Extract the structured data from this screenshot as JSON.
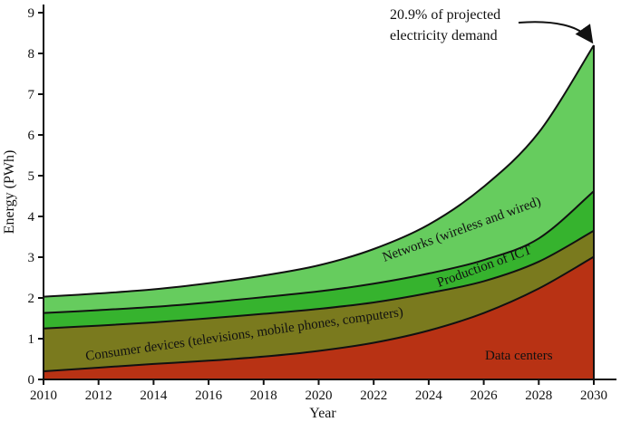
{
  "chart_data": {
    "type": "area",
    "stacked": true,
    "title": "",
    "xlabel": "Year",
    "ylabel": "Energy (PWh)",
    "xlim": [
      2010,
      2030
    ],
    "ylim": [
      0,
      9
    ],
    "x_ticks": [
      2010,
      2012,
      2014,
      2016,
      2018,
      2020,
      2022,
      2024,
      2026,
      2028,
      2030
    ],
    "y_ticks": [
      0,
      1,
      2,
      3,
      4,
      5,
      6,
      7,
      8,
      9
    ],
    "x": [
      2010,
      2012,
      2014,
      2016,
      2018,
      2020,
      2022,
      2024,
      2026,
      2028,
      2030
    ],
    "series": [
      {
        "name": "Data centers",
        "color": "#b83214",
        "values": [
          0.2,
          0.29,
          0.38,
          0.46,
          0.56,
          0.7,
          0.9,
          1.2,
          1.63,
          2.23,
          3.01
        ]
      },
      {
        "name": "Consumer devices (televisions, mobile phones, computers)",
        "color": "#7a7a1e",
        "values": [
          1.05,
          1.03,
          1.02,
          1.04,
          1.05,
          1.03,
          0.99,
          0.92,
          0.78,
          0.66,
          0.64
        ]
      },
      {
        "name": "Production of ICT",
        "color": "#36b32e",
        "values": [
          0.38,
          0.38,
          0.38,
          0.39,
          0.41,
          0.43,
          0.46,
          0.48,
          0.52,
          0.57,
          0.97
        ]
      },
      {
        "name": "Networks (wireless and wired)",
        "color": "#66cc5e",
        "values": [
          0.4,
          0.41,
          0.43,
          0.47,
          0.53,
          0.64,
          0.85,
          1.2,
          1.8,
          2.6,
          3.58
        ]
      }
    ],
    "annotation": {
      "line1": "20.9% of projected",
      "line2": "electricity demand"
    }
  }
}
